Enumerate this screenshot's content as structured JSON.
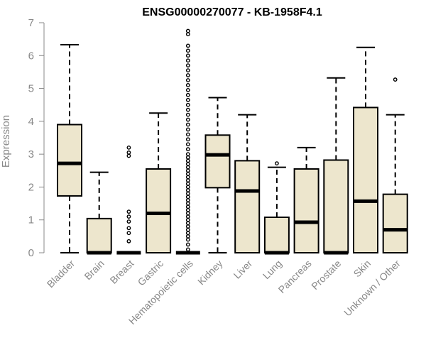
{
  "chart_data": {
    "type": "boxplot",
    "title": "ENSG00000270077 - KB-1958F4.1",
    "xlabel": "",
    "ylabel": "Expression",
    "ylim": [
      0,
      7
    ],
    "yticks": [
      0,
      1,
      2,
      3,
      4,
      5,
      6,
      7
    ],
    "grid": false,
    "box_fill": "#ede6cd",
    "box_stroke": "#000000",
    "categories": [
      "Bladder",
      "Brain",
      "Breast",
      "Gastric",
      "Hematopoietic cells",
      "Kidney",
      "Liver",
      "Lung",
      "Pancreas",
      "Prostate",
      "Skin",
      "Unknown / Other"
    ],
    "boxes": [
      {
        "whisker_low": 0,
        "q1": 1.73,
        "median": 2.72,
        "q3": 3.9,
        "whisker_high": 6.33,
        "outliers": []
      },
      {
        "whisker_low": 0,
        "q1": 0,
        "median": 0,
        "q3": 1.04,
        "whisker_high": 2.45,
        "outliers": []
      },
      {
        "whisker_low": 0,
        "q1": 0,
        "median": 0,
        "q3": 0,
        "whisker_high": 0,
        "outliers": [
          0.35,
          0.6,
          0.75,
          0.95,
          1.1,
          1.25,
          2.95,
          3.05,
          3.2
        ]
      },
      {
        "whisker_low": 0,
        "q1": 0,
        "median": 1.2,
        "q3": 2.55,
        "whisker_high": 4.25,
        "outliers": []
      },
      {
        "whisker_low": 0,
        "q1": 0,
        "median": 0,
        "q3": 0,
        "whisker_high": 0,
        "outliers": [
          0.1,
          0.25,
          0.4,
          0.5,
          0.6,
          0.7,
          0.8,
          0.9,
          1.0,
          1.1,
          1.2,
          1.3,
          1.4,
          1.5,
          1.6,
          1.7,
          1.8,
          1.9,
          2.0,
          2.1,
          2.2,
          2.3,
          2.4,
          2.5,
          2.6,
          2.7,
          2.8,
          2.9,
          3.0,
          3.15,
          3.3,
          3.45,
          3.6,
          3.75,
          3.9,
          4.05,
          4.2,
          4.35,
          4.5,
          4.65,
          4.8,
          4.95,
          5.1,
          5.25,
          5.4,
          5.55,
          5.7,
          5.85,
          6.0,
          6.15,
          6.3,
          6.65,
          6.75
        ]
      },
      {
        "whisker_low": 0,
        "q1": 1.98,
        "median": 2.98,
        "q3": 3.58,
        "whisker_high": 4.72,
        "outliers": []
      },
      {
        "whisker_low": 0,
        "q1": 0,
        "median": 1.88,
        "q3": 2.8,
        "whisker_high": 4.2,
        "outliers": []
      },
      {
        "whisker_low": 0,
        "q1": 0,
        "median": 0,
        "q3": 1.08,
        "whisker_high": 2.6,
        "outliers": [
          2.72
        ]
      },
      {
        "whisker_low": 0,
        "q1": 0,
        "median": 0.93,
        "q3": 2.55,
        "whisker_high": 3.2,
        "outliers": []
      },
      {
        "whisker_low": 0,
        "q1": 0,
        "median": 0,
        "q3": 2.82,
        "whisker_high": 5.32,
        "outliers": []
      },
      {
        "whisker_low": 0,
        "q1": 0,
        "median": 1.57,
        "q3": 4.42,
        "whisker_high": 6.25,
        "outliers": []
      },
      {
        "whisker_low": 0,
        "q1": 0,
        "median": 0.7,
        "q3": 1.78,
        "whisker_high": 4.2,
        "outliers": [
          5.27
        ]
      }
    ]
  }
}
